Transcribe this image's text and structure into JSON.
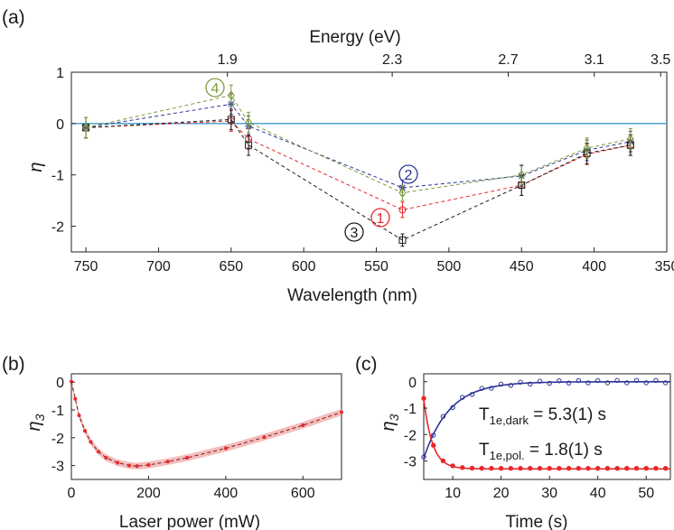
{
  "panels": {
    "a": {
      "tag": "(a)",
      "chart_data": {
        "type": "line",
        "xlabel": "Wavelength (nm)",
        "ylabel": "η",
        "top_axis_label": "Energy (eV)",
        "xlim": [
          760,
          350
        ],
        "ylim": [
          -2.5,
          1
        ],
        "x_ticks": [
          "750",
          "700",
          "650",
          "600",
          "550",
          "500",
          "450",
          "400",
          "350"
        ],
        "x_tick_values": [
          750,
          700,
          650,
          600,
          550,
          500,
          450,
          400,
          350
        ],
        "y_ticks": [
          "1",
          "0",
          "-1",
          "-2"
        ],
        "y_tick_values": [
          1,
          0,
          -1,
          -2
        ],
        "top_ticks": [
          "1.9",
          "2.3",
          "2.7",
          "3.1",
          "3.5"
        ],
        "top_tick_values": [
          1.9,
          2.3,
          2.7,
          3.1,
          3.5
        ],
        "x": [
          750,
          650,
          638,
          532,
          450,
          405,
          375
        ],
        "series": [
          {
            "name": "1",
            "label": "1",
            "color": "#e8292b",
            "marker": "circle",
            "values": [
              -0.08,
              0.05,
              -0.3,
              -1.68,
              -1.2,
              -0.6,
              -0.42
            ],
            "errors": [
              0.2,
              0.2,
              0.2,
              0.15,
              0.2,
              0.2,
              0.2
            ]
          },
          {
            "name": "2",
            "label": "2",
            "color": "#2b3595",
            "marker": "star",
            "values": [
              -0.08,
              0.38,
              -0.05,
              -1.25,
              -1.02,
              -0.52,
              -0.35
            ],
            "errors": [
              0.2,
              0.2,
              0.2,
              0.15,
              0.2,
              0.2,
              0.2
            ]
          },
          {
            "name": "3",
            "label": "3",
            "color": "#1c1c1c",
            "marker": "square",
            "values": [
              -0.08,
              0.08,
              -0.42,
              -2.27,
              -1.2,
              -0.58,
              -0.42
            ],
            "errors": [
              0.2,
              0.2,
              0.2,
              0.12,
              0.2,
              0.2,
              0.2
            ]
          },
          {
            "name": "4",
            "label": "4",
            "color": "#7f9a3a",
            "marker": "diamond",
            "values": [
              -0.08,
              0.55,
              0.02,
              -1.35,
              -1.0,
              -0.48,
              -0.3
            ],
            "errors": [
              0.2,
              0.2,
              0.2,
              0.15,
              0.2,
              0.2,
              0.2
            ]
          }
        ],
        "reference_line": {
          "y": 0,
          "color": "#3d9bd6"
        }
      }
    },
    "b": {
      "tag": "(b)",
      "chart_data": {
        "type": "line",
        "xlabel": "Laser power (mW)",
        "ylabel": "η3",
        "xlim": [
          0,
          700
        ],
        "ylim": [
          -3.5,
          0.3
        ],
        "x_ticks": [
          "0",
          "200",
          "400",
          "600"
        ],
        "x_tick_values": [
          0,
          200,
          400,
          600
        ],
        "y_ticks": [
          "0",
          "-1",
          "-2",
          "-3"
        ],
        "y_tick_values": [
          0,
          -1,
          -2,
          -3
        ],
        "x": [
          0,
          10,
          20,
          35,
          50,
          70,
          90,
          120,
          150,
          170,
          200,
          250,
          300,
          400,
          500,
          600,
          700
        ],
        "values": [
          0.02,
          -0.6,
          -1.2,
          -1.75,
          -2.15,
          -2.5,
          -2.72,
          -2.9,
          -3.0,
          -3.02,
          -2.98,
          -2.86,
          -2.72,
          -2.38,
          -1.98,
          -1.55,
          -1.08
        ],
        "band_halfwidth": 0.12,
        "color": "#e8292b"
      }
    },
    "c": {
      "tag": "(c)",
      "chart_data": {
        "type": "line",
        "xlabel": "Time (s)",
        "ylabel": "η3",
        "xlim": [
          4,
          55
        ],
        "ylim": [
          -3.7,
          0.3
        ],
        "x_ticks": [
          "10",
          "20",
          "30",
          "40",
          "50"
        ],
        "x_tick_values": [
          10,
          20,
          30,
          40,
          50
        ],
        "y_ticks": [
          "0",
          "-1",
          "-2",
          "-3"
        ],
        "y_tick_values": [
          0,
          -1,
          -2,
          -3
        ],
        "series": [
          {
            "name": "dark",
            "color": "#2b3595",
            "start": -2.9,
            "end": 0.0,
            "tau": 5.3,
            "t0": 4
          },
          {
            "name": "pol",
            "color": "#e8292b",
            "start": -0.65,
            "end": -3.3,
            "tau": 1.8,
            "t0": 4
          }
        ],
        "annotations": {
          "dark": {
            "symbol": "T",
            "sub": "1e,dark",
            "value": " = 5.3(1) s"
          },
          "pol": {
            "symbol": "T",
            "sub": "1e,pol.",
            "value": " = 1.8(1) s"
          }
        }
      }
    }
  }
}
